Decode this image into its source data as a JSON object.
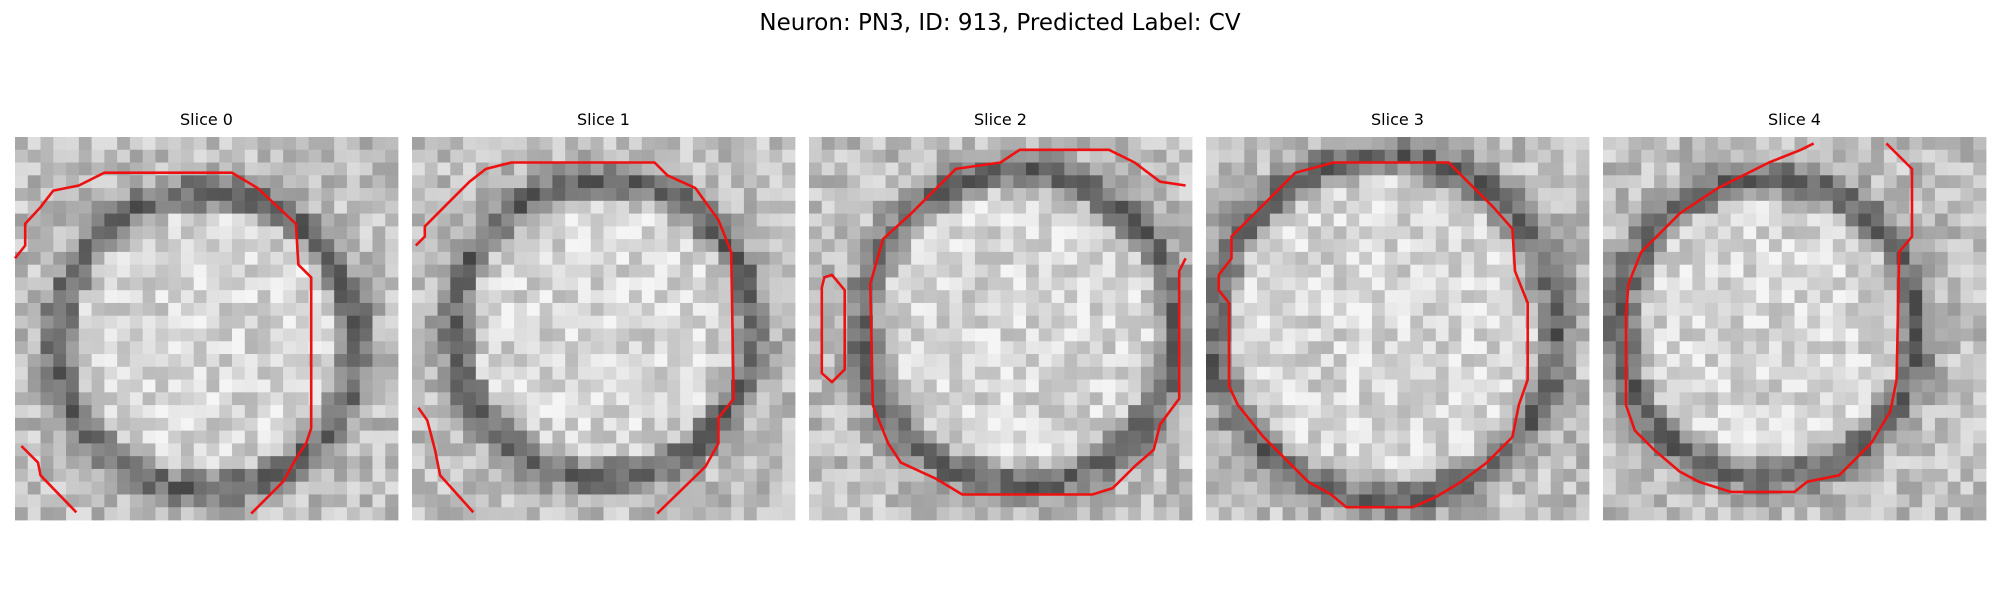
{
  "title": "Neuron: PN3, ID: 913, Predicted Label: CV",
  "panels": [
    {
      "title": "Slice 0"
    },
    {
      "title": "Slice 1"
    },
    {
      "title": "Slice 2"
    },
    {
      "title": "Slice 3"
    },
    {
      "title": "Slice 4"
    }
  ]
}
